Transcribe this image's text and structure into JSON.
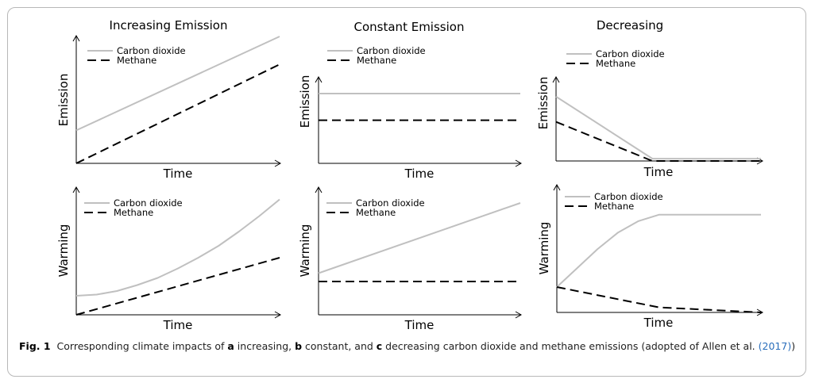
{
  "chart_data": [
    {
      "type": "line",
      "title": "Increasing Emission",
      "xlabel": "Time",
      "ylabel": "Emission",
      "series": [
        {
          "name": "Carbon dioxide",
          "x": [
            0,
            1
          ],
          "y": [
            0.26,
            1.0
          ]
        },
        {
          "name": "Methane",
          "x": [
            0,
            1
          ],
          "y": [
            0.0,
            0.78
          ]
        }
      ]
    },
    {
      "type": "line",
      "title": "Constant Emission",
      "xlabel": "Time",
      "ylabel": "Emission",
      "series": [
        {
          "name": "Carbon dioxide",
          "x": [
            0,
            1
          ],
          "y": [
            0.55,
            0.55
          ]
        },
        {
          "name": "Methane",
          "x": [
            0,
            1
          ],
          "y": [
            0.34,
            0.34
          ]
        }
      ]
    },
    {
      "type": "line",
      "title": "Decreasing",
      "xlabel": "Time",
      "ylabel": "Emission",
      "series": [
        {
          "name": "Carbon dioxide",
          "x": [
            0,
            0.47,
            1
          ],
          "y": [
            0.56,
            0.02,
            0.02
          ]
        },
        {
          "name": "Methane",
          "x": [
            0,
            0.47,
            1
          ],
          "y": [
            0.34,
            0.0,
            0.0
          ]
        }
      ]
    },
    {
      "type": "line",
      "title": "",
      "xlabel": "Time",
      "ylabel": "Warming",
      "series": [
        {
          "name": "Carbon dioxide",
          "x": [
            0,
            0.1,
            0.2,
            0.3,
            0.4,
            0.5,
            0.6,
            0.7,
            0.8,
            0.9,
            1.0
          ],
          "y": [
            0.16,
            0.17,
            0.2,
            0.25,
            0.31,
            0.39,
            0.48,
            0.58,
            0.7,
            0.83,
            0.97
          ]
        },
        {
          "name": "Methane",
          "x": [
            0,
            1
          ],
          "y": [
            0.0,
            0.48
          ]
        }
      ]
    },
    {
      "type": "line",
      "title": "",
      "xlabel": "Time",
      "ylabel": "Warming",
      "series": [
        {
          "name": "Carbon dioxide",
          "x": [
            0,
            1
          ],
          "y": [
            0.35,
            0.94
          ]
        },
        {
          "name": "Methane",
          "x": [
            0,
            1
          ],
          "y": [
            0.28,
            0.28
          ]
        }
      ]
    },
    {
      "type": "line",
      "title": "",
      "xlabel": "Time",
      "ylabel": "Warming",
      "series": [
        {
          "name": "Carbon dioxide",
          "x": [
            0,
            0.1,
            0.2,
            0.3,
            0.4,
            0.5,
            0.6,
            0.7,
            0.8,
            0.9,
            1.0
          ],
          "y": [
            0.2,
            0.35,
            0.5,
            0.63,
            0.72,
            0.77,
            0.77,
            0.77,
            0.77,
            0.77,
            0.77
          ]
        },
        {
          "name": "Methane",
          "x": [
            0,
            0.5,
            1
          ],
          "y": [
            0.2,
            0.04,
            0.0
          ]
        }
      ]
    }
  ],
  "colors": {
    "carbon_dioxide": "#c0c0c0",
    "methane": "#000000"
  },
  "caption": {
    "label": "Fig. 1",
    "t1": "Corresponding climate impacts of ",
    "a": "a",
    "t2": " increasing, ",
    "b": "b",
    "t3": " constant, and ",
    "c": "c",
    "t4": " decreasing carbon dioxide and methane emissions (adopted of Allen et al. ",
    "ref": "(2017)",
    "t5": ")"
  }
}
